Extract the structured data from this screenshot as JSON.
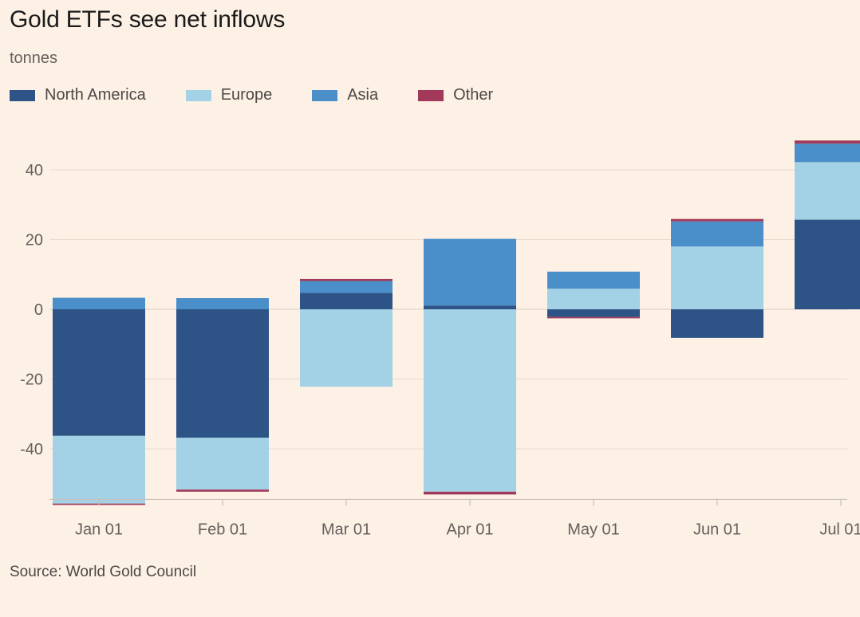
{
  "title": "Gold ETFs see net inflows",
  "subtitle": "tonnes",
  "source": "Source: World Gold Council",
  "legend": [
    {
      "label": "North America",
      "color": "#2e5386"
    },
    {
      "label": "Europe",
      "color": "#a3d1e6"
    },
    {
      "label": "Asia",
      "color": "#4a8fc9"
    },
    {
      "label": "Other",
      "color": "#a2395a"
    }
  ],
  "chart_data": {
    "type": "bar",
    "stacked": true,
    "title": "Gold ETFs see net inflows",
    "ylabel": "tonnes",
    "categories": [
      "Jan 01",
      "Feb 01",
      "Mar 01",
      "Apr 01",
      "May 01",
      "Jun 01",
      "Jul 01"
    ],
    "series": [
      {
        "name": "North America",
        "color": "#2e5386",
        "values": [
          -36.3,
          -36.8,
          4.7,
          1.1,
          -2.2,
          -8.2,
          25.7
        ]
      },
      {
        "name": "Europe",
        "color": "#a3d1e6",
        "values": [
          -19.4,
          -14.9,
          -22.2,
          -52.3,
          5.9,
          18.0,
          16.5
        ]
      },
      {
        "name": "Asia",
        "color": "#4a8fc9",
        "values": [
          3.3,
          3.2,
          3.4,
          19.1,
          4.9,
          7.2,
          5.3
        ]
      },
      {
        "name": "Other",
        "color": "#a2395a",
        "values": [
          -0.4,
          -0.6,
          0.6,
          -0.8,
          -0.4,
          0.7,
          0.9
        ]
      }
    ],
    "yticks": [
      40,
      20,
      0,
      -20,
      -40
    ],
    "ytick_labels": [
      "40",
      "20",
      "0",
      "-20",
      "-40"
    ],
    "ylim": [
      -54.5,
      51
    ],
    "grid": true,
    "legend_position": "top-left"
  }
}
